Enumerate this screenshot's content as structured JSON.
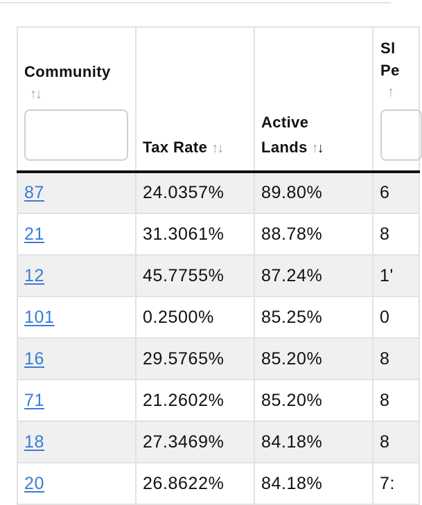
{
  "table": {
    "columns": [
      {
        "label": "Community",
        "sort_up": "↑",
        "sort_down": "↓",
        "has_filter": true,
        "filter_value": ""
      },
      {
        "label": "Tax Rate",
        "sort_up": "↑",
        "sort_down": "↓"
      },
      {
        "label": "Active Lands",
        "label_line1": "Active",
        "label_line2": "Lands",
        "sort_up": "↑",
        "sort_down": "↓",
        "sorted": "descending"
      },
      {
        "label_line1": "Sl",
        "label_line2": "Pe",
        "sort_up": "↑"
      }
    ],
    "rows": [
      {
        "community": "87",
        "tax_rate": "24.0357%",
        "active_lands": "89.80%",
        "partial": "6"
      },
      {
        "community": "21",
        "tax_rate": "31.3061%",
        "active_lands": "88.78%",
        "partial": "8"
      },
      {
        "community": "12",
        "tax_rate": "45.7755%",
        "active_lands": "87.24%",
        "partial": "1'"
      },
      {
        "community": "101",
        "tax_rate": "0.2500%",
        "active_lands": "85.25%",
        "partial": "0"
      },
      {
        "community": "16",
        "tax_rate": "29.5765%",
        "active_lands": "85.20%",
        "partial": "8"
      },
      {
        "community": "71",
        "tax_rate": "21.2602%",
        "active_lands": "85.20%",
        "partial": "8"
      },
      {
        "community": "18",
        "tax_rate": "27.3469%",
        "active_lands": "84.18%",
        "partial": "8"
      },
      {
        "community": "20",
        "tax_rate": "26.8622%",
        "active_lands": "84.18%",
        "partial": "7:"
      }
    ]
  },
  "colors": {
    "link": "#3a7bd5",
    "stripe": "#f0f0f0",
    "border": "#e2e2e2",
    "header_rule": "#111111",
    "sort_inactive": "#a4a4a4"
  }
}
